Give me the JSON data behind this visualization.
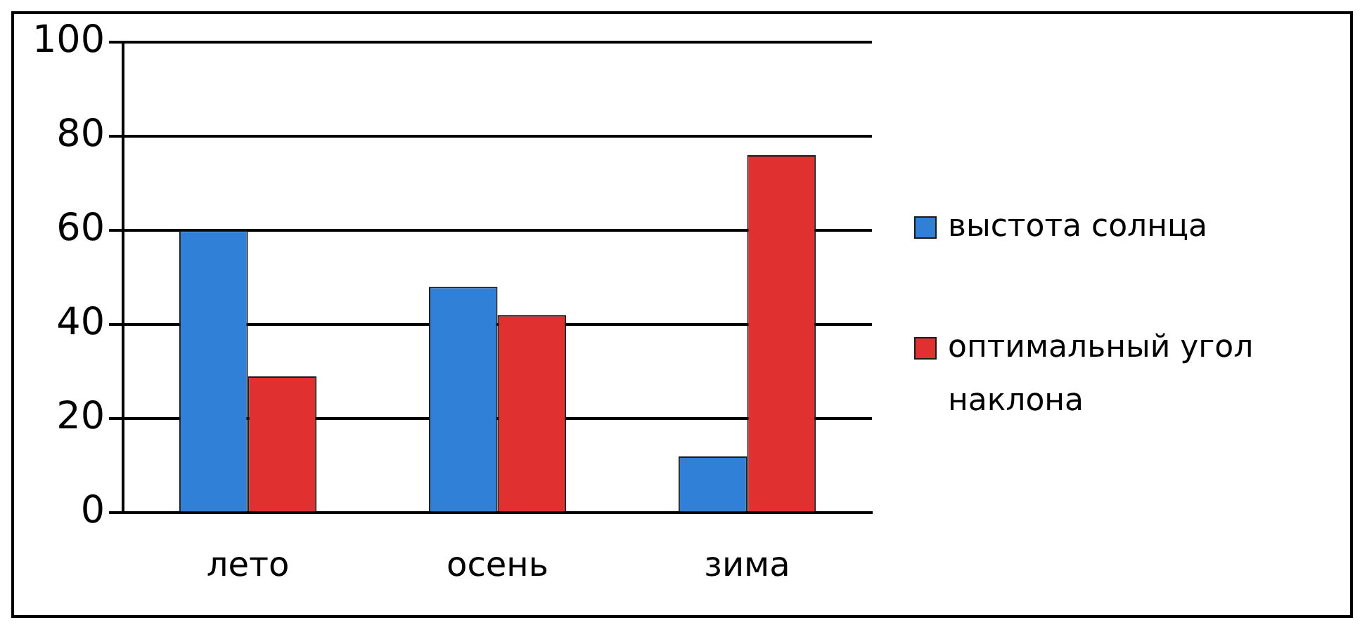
{
  "chart_data": {
    "type": "bar",
    "categories": [
      "лето",
      "осень",
      "зима"
    ],
    "series": [
      {
        "name": "выстота солнца",
        "color": "#3080d8",
        "values": [
          60,
          48,
          12
        ]
      },
      {
        "name": "оптимальный угол наклона",
        "color": "#e03030",
        "values": [
          29,
          42,
          76
        ]
      }
    ],
    "ylim": [
      0,
      100
    ],
    "yticks": [
      0,
      20,
      40,
      60,
      80,
      100
    ],
    "grid": "y",
    "legend": "right"
  }
}
